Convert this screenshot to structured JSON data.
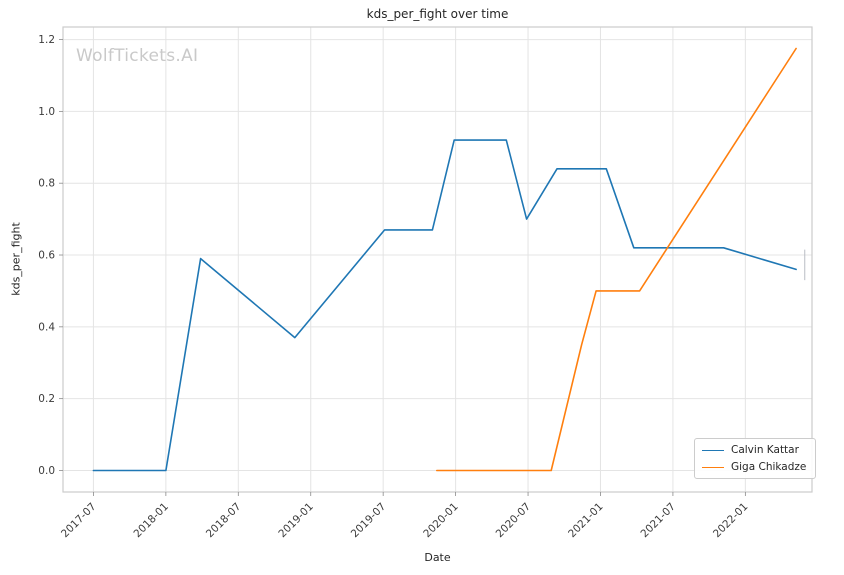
{
  "figure": {
    "title": "kds_per_fight over time",
    "watermark": "WolfTickets.AI",
    "xlabel": "Date",
    "ylabel": "kds_per_fight"
  },
  "chart_data": {
    "type": "line",
    "title": "kds_per_fight over time",
    "xlabel": "Date",
    "ylabel": "kds_per_fight",
    "grid": true,
    "legend_position": "lower right",
    "xlim": [
      2017.29,
      2022.46
    ],
    "ylim": [
      -0.06,
      1.235
    ],
    "xticks": [
      {
        "v": 2017.5,
        "label": "2017-07"
      },
      {
        "v": 2018.0,
        "label": "2018-01"
      },
      {
        "v": 2018.5,
        "label": "2018-07"
      },
      {
        "v": 2019.0,
        "label": "2019-01"
      },
      {
        "v": 2019.5,
        "label": "2019-07"
      },
      {
        "v": 2020.0,
        "label": "2020-01"
      },
      {
        "v": 2020.5,
        "label": "2020-07"
      },
      {
        "v": 2021.0,
        "label": "2021-01"
      },
      {
        "v": 2021.5,
        "label": "2021-07"
      },
      {
        "v": 2022.0,
        "label": "2022-01"
      }
    ],
    "yticks": [
      {
        "v": 0.0,
        "label": "0.0"
      },
      {
        "v": 0.2,
        "label": "0.2"
      },
      {
        "v": 0.4,
        "label": "0.4"
      },
      {
        "v": 0.6,
        "label": "0.6"
      },
      {
        "v": 0.8,
        "label": "0.8"
      },
      {
        "v": 1.0,
        "label": "1.0"
      },
      {
        "v": 1.2,
        "label": "1.2"
      }
    ],
    "series": [
      {
        "name": "Calvin Kattar",
        "color": "#1f77b4",
        "points": [
          [
            2017.5,
            0.0
          ],
          [
            2018.0,
            0.0
          ],
          [
            2018.24,
            0.59
          ],
          [
            2018.89,
            0.37
          ],
          [
            2019.51,
            0.67
          ],
          [
            2019.84,
            0.67
          ],
          [
            2019.99,
            0.92
          ],
          [
            2020.35,
            0.92
          ],
          [
            2020.49,
            0.7
          ],
          [
            2020.7,
            0.84
          ],
          [
            2021.04,
            0.84
          ],
          [
            2021.23,
            0.62
          ],
          [
            2021.85,
            0.62
          ],
          [
            2022.35,
            0.56
          ]
        ]
      },
      {
        "name": "Giga Chikadze",
        "color": "#ff7f0e",
        "points": [
          [
            2019.87,
            0.0
          ],
          [
            2020.66,
            0.0
          ],
          [
            2020.87,
            0.35
          ],
          [
            2020.97,
            0.5
          ],
          [
            2021.27,
            0.5
          ],
          [
            2022.35,
            1.175
          ]
        ]
      }
    ],
    "annotations": {
      "end_cap": {
        "x": 2022.41,
        "y1": 0.53,
        "y2": 0.615,
        "color": "#b9bdc4"
      }
    },
    "style": {
      "grid_color": "#e4e4e4",
      "spine_color": "#cccccc",
      "tick_color": "#8a8a8a",
      "tick_label_color": "#3b3b3b",
      "line_width": 1.6
    }
  }
}
